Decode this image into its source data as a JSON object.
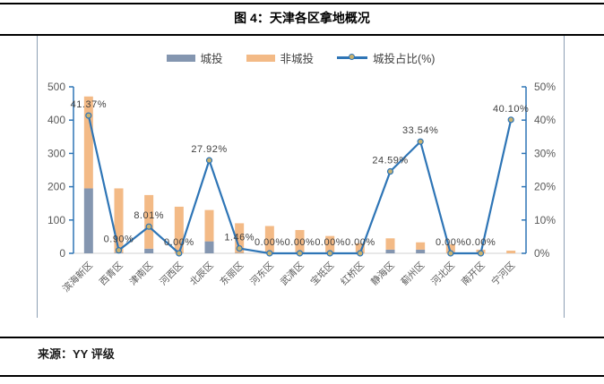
{
  "title": "图 4：天津各区拿地概况",
  "source": "来源：YY 评级",
  "legend": [
    {
      "label": "城投",
      "type": "bar"
    },
    {
      "label": "非城投",
      "type": "bar"
    },
    {
      "label": "城投占比(%)",
      "type": "line"
    }
  ],
  "colors": {
    "chengtou_bar": "#8496B0",
    "fei_chengtou_bar": "#F3BA86",
    "ratio_line": "#2E75B6",
    "marker_fill": "#C9B26F",
    "axis_line": "#2E75B6",
    "axis_text": "#595959",
    "data_label_text": "#404040",
    "x_baseline": "#D9D9D9",
    "cell_border": "#8DA0B4",
    "rule": "#000000"
  },
  "chart_data": {
    "type": "bar",
    "title": "图 4：天津各区拿地概况",
    "stacked": true,
    "grid": false,
    "legend_position": "top",
    "categories": [
      "滨海新区",
      "西青区",
      "津南区",
      "河西区",
      "北辰区",
      "东丽区",
      "河东区",
      "武清区",
      "宝坻区",
      "红桥区",
      "静海区",
      "蓟州区",
      "河北区",
      "南开区",
      "宁河区"
    ],
    "series": [
      {
        "name": "城投",
        "type": "bar",
        "axis": "left",
        "values": [
          195,
          2,
          14,
          0,
          36,
          1.3,
          0,
          0,
          0,
          0,
          11,
          11,
          0,
          0,
          0
        ]
      },
      {
        "name": "非城投",
        "type": "bar",
        "axis": "left",
        "values": [
          276,
          193,
          161,
          140,
          94,
          89,
          82,
          70,
          52,
          30,
          34,
          22,
          27,
          11,
          8
        ]
      },
      {
        "name": "城投占比(%)",
        "type": "line",
        "axis": "right",
        "values": [
          41.37,
          0.9,
          8.01,
          0.0,
          27.92,
          1.46,
          0.0,
          0.0,
          0.0,
          0.0,
          24.59,
          33.54,
          0.0,
          0.0,
          40.1
        ],
        "point_labels": [
          "41.37%",
          "0.90%",
          "8.01%",
          "0.00%",
          "27.92%",
          "1.46%",
          "0.00%",
          "0.00%",
          "0.00%",
          "0.00%",
          "24.59%",
          "33.54%",
          "0.00%",
          "0.00%",
          "40.10%"
        ]
      }
    ],
    "left_axis": {
      "min": 0,
      "max": 500,
      "step": 100,
      "ticks": [
        "0",
        "100",
        "200",
        "300",
        "400",
        "500"
      ]
    },
    "right_axis": {
      "min": 0,
      "max": 50,
      "step": 10,
      "ticks": [
        "0%",
        "10%",
        "20%",
        "30%",
        "40%",
        "50%"
      ]
    }
  }
}
